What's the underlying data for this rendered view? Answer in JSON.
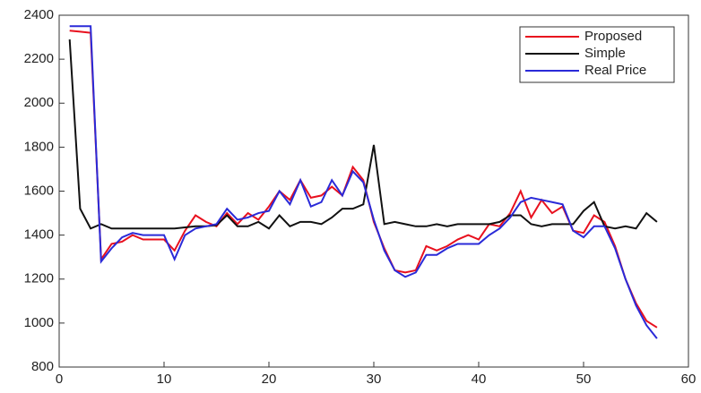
{
  "chart_data": {
    "type": "line",
    "x": [
      1,
      2,
      3,
      4,
      5,
      6,
      7,
      8,
      9,
      10,
      11,
      12,
      13,
      14,
      15,
      16,
      17,
      18,
      19,
      20,
      21,
      22,
      23,
      24,
      25,
      26,
      27,
      28,
      29,
      30,
      31,
      32,
      33,
      34,
      35,
      36,
      37,
      38,
      39,
      40,
      41,
      42,
      43,
      44,
      45,
      46,
      47,
      48,
      49,
      50,
      51,
      52,
      53,
      54,
      55,
      56,
      57
    ],
    "series": [
      {
        "name": "Proposed",
        "color": "#e8101e",
        "values": [
          2330,
          2325,
          2320,
          1290,
          1360,
          1370,
          1400,
          1380,
          1380,
          1380,
          1330,
          1420,
          1490,
          1460,
          1440,
          1500,
          1450,
          1500,
          1470,
          1530,
          1600,
          1560,
          1650,
          1570,
          1580,
          1620,
          1580,
          1710,
          1650,
          1460,
          1340,
          1240,
          1230,
          1240,
          1350,
          1330,
          1350,
          1380,
          1400,
          1380,
          1450,
          1440,
          1500,
          1600,
          1480,
          1560,
          1500,
          1530,
          1420,
          1410,
          1490,
          1460,
          1350,
          1200,
          1090,
          1010,
          980
        ]
      },
      {
        "name": "Simple",
        "color": "#111111",
        "values": [
          2290,
          1520,
          1430,
          1450,
          1430,
          1430,
          1430,
          1430,
          1430,
          1430,
          1430,
          1435,
          1440,
          1440,
          1445,
          1490,
          1440,
          1440,
          1460,
          1430,
          1490,
          1440,
          1460,
          1460,
          1450,
          1480,
          1520,
          1520,
          1540,
          1810,
          1450,
          1460,
          1450,
          1440,
          1440,
          1450,
          1440,
          1450,
          1450,
          1450,
          1450,
          1460,
          1490,
          1490,
          1450,
          1440,
          1450,
          1450,
          1450,
          1510,
          1550,
          1440,
          1430,
          1440,
          1430,
          1500,
          1460
        ]
      },
      {
        "name": "Real Price",
        "color": "#2a2ad8",
        "values": [
          2350,
          2350,
          2350,
          1280,
          1340,
          1390,
          1410,
          1400,
          1400,
          1400,
          1290,
          1400,
          1430,
          1440,
          1450,
          1520,
          1470,
          1480,
          1500,
          1510,
          1600,
          1540,
          1650,
          1530,
          1550,
          1650,
          1580,
          1690,
          1640,
          1470,
          1330,
          1240,
          1210,
          1230,
          1310,
          1310,
          1340,
          1360,
          1360,
          1360,
          1400,
          1430,
          1480,
          1550,
          1570,
          1560,
          1550,
          1540,
          1420,
          1390,
          1440,
          1440,
          1340,
          1200,
          1080,
          990,
          930
        ]
      }
    ],
    "xlim": [
      0,
      60
    ],
    "xticks": [
      0,
      10,
      20,
      30,
      40,
      50,
      60
    ],
    "ylim": [
      800,
      2400
    ],
    "yticks": [
      800,
      1000,
      1200,
      1400,
      1600,
      1800,
      2000,
      2200,
      2400
    ],
    "legend": "top-right"
  }
}
